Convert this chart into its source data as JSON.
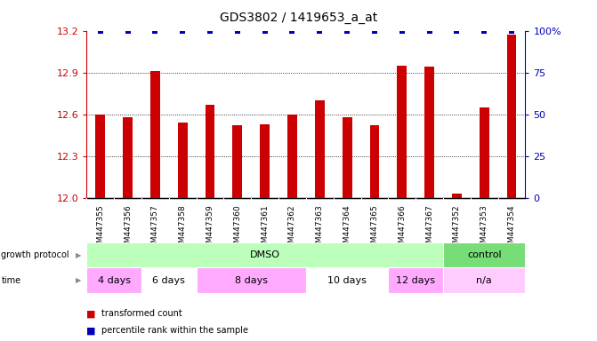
{
  "title": "GDS3802 / 1419653_a_at",
  "samples": [
    "GSM447355",
    "GSM447356",
    "GSM447357",
    "GSM447358",
    "GSM447359",
    "GSM447360",
    "GSM447361",
    "GSM447362",
    "GSM447363",
    "GSM447364",
    "GSM447365",
    "GSM447366",
    "GSM447367",
    "GSM447352",
    "GSM447353",
    "GSM447354"
  ],
  "red_values": [
    12.6,
    12.58,
    12.91,
    12.54,
    12.67,
    12.52,
    12.53,
    12.6,
    12.7,
    12.58,
    12.52,
    12.95,
    12.94,
    12.03,
    12.65,
    13.17
  ],
  "blue_values": [
    100,
    100,
    100,
    100,
    100,
    100,
    100,
    100,
    100,
    100,
    100,
    100,
    100,
    100,
    100,
    100
  ],
  "ymin": 12.0,
  "ymax": 13.2,
  "yticks": [
    12.0,
    12.3,
    12.6,
    12.9,
    13.2
  ],
  "right_ytick_labels": [
    "0",
    "25",
    "50",
    "75",
    "100%"
  ],
  "right_ytick_vals": [
    0,
    25,
    50,
    75,
    100
  ],
  "bar_color": "#cc0000",
  "dot_color": "#0000bb",
  "bg_color": "#ffffff",
  "grid_color": "#dddddd",
  "growth_protocol_label": "growth protocol",
  "time_label": "time",
  "protocol_groups": [
    {
      "label": "DMSO",
      "start": 0,
      "end": 13,
      "color": "#bbffbb"
    },
    {
      "label": "control",
      "start": 13,
      "end": 16,
      "color": "#77dd77"
    }
  ],
  "time_groups": [
    {
      "label": "4 days",
      "start": 0,
      "end": 2,
      "color": "#ffaaff"
    },
    {
      "label": "6 days",
      "start": 2,
      "end": 4,
      "color": "#ffffff"
    },
    {
      "label": "8 days",
      "start": 4,
      "end": 8,
      "color": "#ffaaff"
    },
    {
      "label": "10 days",
      "start": 8,
      "end": 11,
      "color": "#ffffff"
    },
    {
      "label": "12 days",
      "start": 11,
      "end": 13,
      "color": "#ffaaff"
    },
    {
      "label": "n/a",
      "start": 13,
      "end": 16,
      "color": "#ffccff"
    }
  ],
  "legend_red_label": "transformed count",
  "legend_blue_label": "percentile rank within the sample"
}
